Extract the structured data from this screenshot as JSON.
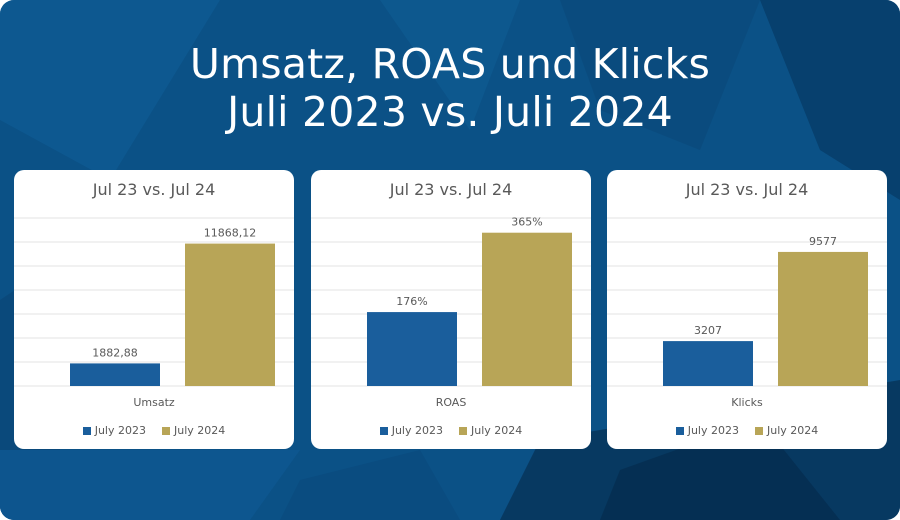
{
  "header": {
    "title_line1": "Umsatz, ROAS und Klicks",
    "title_line2": "Juli 2023 vs. Juli 2024"
  },
  "colors": {
    "background": "#0b5186",
    "series_2023": "#1a5e9c",
    "series_2024": "#b8a557",
    "gridline": "#e3e3e3",
    "text": "#595959"
  },
  "chart_data": [
    {
      "type": "bar",
      "title": "Jul 23 vs. Jul 24",
      "categories": [
        "Umsatz"
      ],
      "series": [
        {
          "name": "July 2023",
          "values": [
            1882.88
          ],
          "label": "1882,88"
        },
        {
          "name": "July 2024",
          "values": [
            11868.12
          ],
          "label": "11868,12"
        }
      ],
      "ylim": [
        0,
        14000
      ],
      "grid": true,
      "legend": "bottom"
    },
    {
      "type": "bar",
      "title": "Jul 23 vs. Jul 24",
      "categories": [
        "ROAS"
      ],
      "series": [
        {
          "name": "July 2023",
          "values": [
            176
          ],
          "label": "176%"
        },
        {
          "name": "July 2024",
          "values": [
            365
          ],
          "label": "365%"
        }
      ],
      "ylim": [
        0,
        400
      ],
      "grid": true,
      "legend": "bottom"
    },
    {
      "type": "bar",
      "title": "Jul 23 vs. Jul 24",
      "categories": [
        "Klicks"
      ],
      "series": [
        {
          "name": "July 2023",
          "values": [
            3207
          ],
          "label": "3207"
        },
        {
          "name": "July 2024",
          "values": [
            9577
          ],
          "label": "9577"
        }
      ],
      "ylim": [
        0,
        12000
      ],
      "grid": true,
      "legend": "bottom"
    }
  ]
}
